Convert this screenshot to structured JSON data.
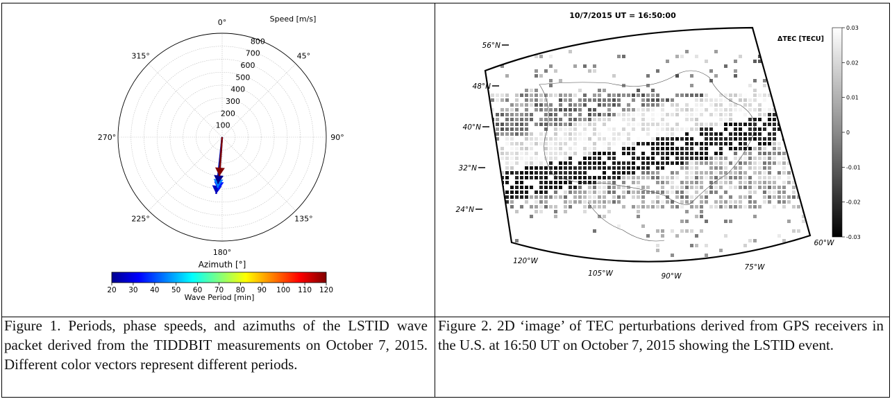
{
  "figure1": {
    "speed_title": "Speed [m/s]",
    "azimuth_title": "Azimuth [°]",
    "colorbar_label": "Wave Period [min]",
    "colorbar_ticks": [
      "20",
      "30",
      "40",
      "50",
      "60",
      "70",
      "80",
      "90",
      "100",
      "110",
      "120"
    ],
    "radial_ticks": [
      "100",
      "200",
      "300",
      "400",
      "500",
      "600",
      "700",
      "800"
    ],
    "angle_labels": [
      "0°",
      "45°",
      "90°",
      "135°",
      "180°",
      "225°",
      "270°",
      "315°"
    ],
    "caption": "Figure 1. Periods, phase speeds, and azimuths of the LSTID wave packet derived from the TIDDBIT measurements on October 7, 2015. Different color vectors represent different periods."
  },
  "figure2": {
    "title": "10/7/2015  UT = 16:50:00",
    "colorbar_title": "ΔTEC [TECU]",
    "colorbar_ticks": [
      "0.03",
      "0.02",
      "0.01",
      "0",
      "-0.01",
      "-0.02",
      "-0.03"
    ],
    "lat_labels": [
      "56°N",
      "48°N",
      "40°N",
      "32°N",
      "24°N"
    ],
    "lon_labels": [
      "120°W",
      "105°W",
      "90°W",
      "75°W",
      "60°W"
    ],
    "caption": "Figure 2. 2D ‘image’ of TEC perturbations derived from GPS receivers in the U.S. at 16:50 UT on October 7, 2015 showing the LSTID event."
  },
  "chart_data": [
    {
      "type": "scatter",
      "subtype": "polar-vectors",
      "rlim": [
        0,
        800
      ],
      "theta_zero": "top",
      "theta_direction": "clockwise",
      "grid": true,
      "xlabel": "Azimuth [°]",
      "colorbar": {
        "label": "Wave Period [min]",
        "range": [
          20,
          120
        ]
      },
      "vectors": [
        {
          "azimuth": 184,
          "speed": 300,
          "period": 120
        },
        {
          "azimuth": 185,
          "speed": 360,
          "period": 20
        },
        {
          "azimuth": 185,
          "speed": 390,
          "period": 45
        },
        {
          "azimuth": 184,
          "speed": 410,
          "period": 35
        },
        {
          "azimuth": 186,
          "speed": 440,
          "period": 25
        }
      ]
    },
    {
      "type": "heatmap",
      "title": "10/7/2015  UT = 16:50:00",
      "colorbar": {
        "label": "ΔTEC [TECU]",
        "range": [
          -0.03,
          0.03
        ]
      }
    }
  ]
}
